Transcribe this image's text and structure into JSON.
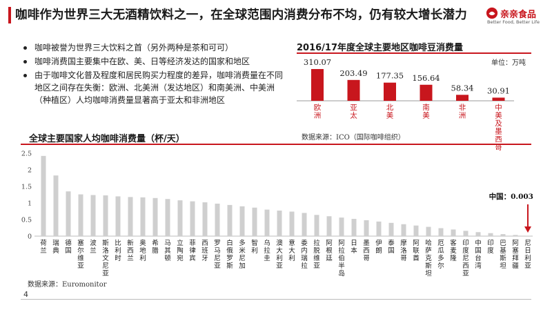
{
  "header": {
    "title": "咖啡作为世界三大无酒精饮料之一，在全球范围内消费分布不均，仍有较大增长潜力",
    "logo_cn": "亲亲食品",
    "logo_en": "Better Food, Better Life"
  },
  "bullets": [
    "咖啡被誉为世界三大饮料之首（另外两种是茶和可可）",
    "咖啡消费国主要集中在欧、美、日等经济发达的国家和地区",
    "由于咖啡文化普及程度和居民购买力程度的差异，咖啡消费量在不同地区之间存在失衡：欧洲、北美洲（发达地区）和南美洲、中美洲（种植区）人均咖啡消费量显著高于亚太和非洲地区"
  ],
  "page_number": "4",
  "colors": {
    "accent": "#c8161d",
    "bar_gray": "#cfcfcf"
  },
  "chart_data": [
    {
      "type": "bar",
      "title": "2016/17年度全球主要地区咖啡豆消费量",
      "unit_label": "单位：万吨",
      "source": "数据来源：ICO（国际咖啡组织）",
      "categories": [
        "欧洲",
        "亚太",
        "北美",
        "南美",
        "非洲",
        "中美及墨西哥"
      ],
      "values": [
        310.07,
        203.49,
        177.35,
        156.64,
        58.34,
        30.91
      ],
      "value_labels": [
        "310.07",
        "203.49",
        "177.35",
        "156.64",
        "58.34",
        "30.91"
      ],
      "color": "#c8161d"
    },
    {
      "type": "bar",
      "title": "全球主要国家人均咖啡消费量（杯/天）",
      "source": "数据来源：Euromonitor",
      "ylim": [
        0,
        2.5
      ],
      "yticks": [
        "0",
        "0.5",
        "1",
        "1.5",
        "2",
        "2.5"
      ],
      "grid": false,
      "categories": [
        "荷兰",
        "瑞典",
        "德国",
        "塞尔维亚",
        "波兰",
        "斯洛文尼亚",
        "比利时",
        "新西兰",
        "奥地利",
        "希腊",
        "马其顿",
        "立陶宛",
        "菲律宾",
        "西班牙",
        "罗马尼亚",
        "白俄罗斯",
        "多米尼加",
        "智利",
        "乌拉圭",
        "澳大利亚",
        "意大利",
        "委内瑞拉",
        "拉脱维亚",
        "阿根廷",
        "阿拉伯半岛",
        "日本",
        "墨西哥",
        "伊朗",
        "泰国",
        "摩洛哥",
        "阿联酋",
        "哈萨克斯坦",
        "厄瓜多尔",
        "客麦隆",
        "印度尼西亚",
        "中国台湾",
        "印度",
        "巴基斯坦",
        "阿塞拜疆",
        "尼日利亚"
      ],
      "values": [
        2.42,
        1.83,
        1.35,
        1.26,
        1.24,
        1.23,
        1.2,
        1.18,
        1.17,
        1.15,
        1.12,
        1.08,
        1.05,
        1.02,
        0.98,
        0.94,
        0.9,
        0.86,
        0.8,
        0.77,
        0.74,
        0.7,
        0.64,
        0.6,
        0.56,
        0.52,
        0.48,
        0.44,
        0.4,
        0.36,
        0.32,
        0.28,
        0.24,
        0.2,
        0.16,
        0.12,
        0.09,
        0.06,
        0.035,
        0.003
      ],
      "highlight": {
        "category": "中国",
        "label": "中国：0.003"
      }
    }
  ]
}
